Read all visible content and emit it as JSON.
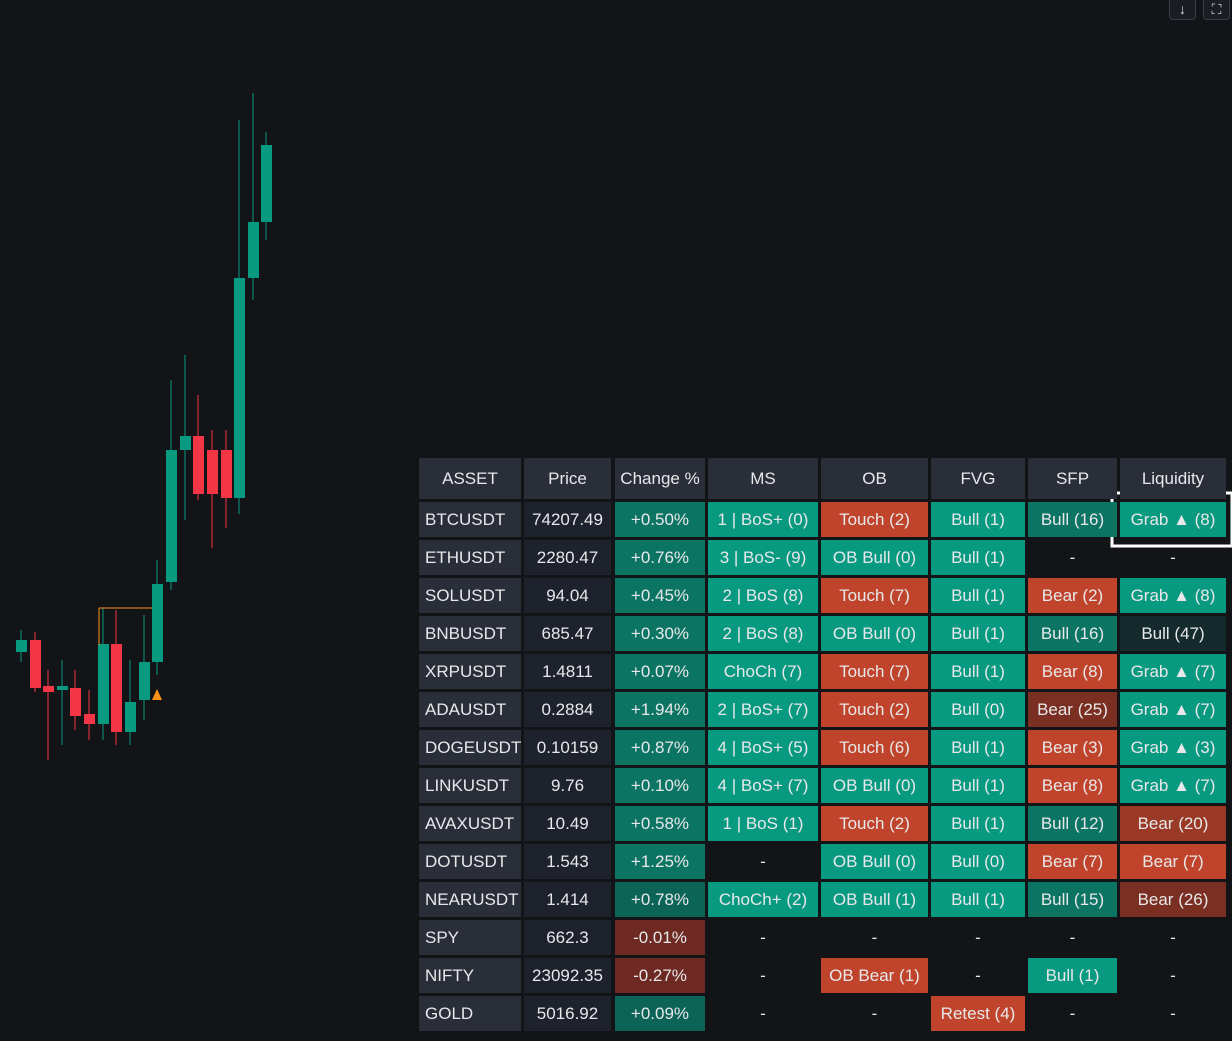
{
  "table": {
    "headers": [
      "ASSET",
      "Price",
      "Change %",
      "MS",
      "OB",
      "FVG",
      "SFP",
      "Liquidity"
    ],
    "rows": [
      [
        "BTCUSDT",
        "74207.49",
        "+0.50%",
        "1 | BoS+ (0)",
        "Touch (2)",
        "Bull (1)",
        "Bull (16)",
        "Grab ▲ (8)"
      ],
      [
        "ETHUSDT",
        "2280.47",
        "+0.76%",
        "3 | BoS- (9)",
        "OB Bull (0)",
        "Bull (1)",
        "-",
        "-"
      ],
      [
        "SOLUSDT",
        "94.04",
        "+0.45%",
        "2 | BoS (8)",
        "Touch (7)",
        "Bull (1)",
        "Bear (2)",
        "Grab ▲ (8)"
      ],
      [
        "BNBUSDT",
        "685.47",
        "+0.30%",
        "2 | BoS (8)",
        "OB Bull (0)",
        "Bull (1)",
        "Bull (16)",
        "Bull (47)"
      ],
      [
        "XRPUSDT",
        "1.4811",
        "+0.07%",
        "ChoCh (7)",
        "Touch (7)",
        "Bull (1)",
        "Bear (8)",
        "Grab ▲ (7)"
      ],
      [
        "ADAUSDT",
        "0.2884",
        "+1.94%",
        "2 | BoS+ (7)",
        "Touch (2)",
        "Bull (0)",
        "Bear (25)",
        "Grab ▲ (7)"
      ],
      [
        "DOGEUSDT",
        "0.10159",
        "+0.87%",
        "4 | BoS+ (5)",
        "Touch (6)",
        "Bull (1)",
        "Bear (3)",
        "Grab ▲ (3)"
      ],
      [
        "LINKUSDT",
        "9.76",
        "+0.10%",
        "4 | BoS+ (7)",
        "OB Bull (0)",
        "Bull (1)",
        "Bear (8)",
        "Grab ▲ (7)"
      ],
      [
        "AVAXUSDT",
        "10.49",
        "+0.58%",
        "1 | BoS (1)",
        "Touch (2)",
        "Bull (1)",
        "Bull (12)",
        "Bear (20)"
      ],
      [
        "DOTUSDT",
        "1.543",
        "+1.25%",
        "-",
        "OB Bull (0)",
        "Bull (0)",
        "Bear (7)",
        "Bear (7)"
      ],
      [
        "NEARUSDT",
        "1.414",
        "+0.78%",
        "ChoCh+ (2)",
        "OB Bull (1)",
        "Bull (1)",
        "Bull (15)",
        "Bear (26)"
      ],
      [
        "SPY",
        "662.3",
        "-0.01%",
        "-",
        "-",
        "-",
        "-",
        "-"
      ],
      [
        "NIFTY",
        "23092.35",
        "-0.27%",
        "-",
        "OB Bear (1)",
        "-",
        "Bull (1)",
        "-"
      ],
      [
        "GOLD",
        "5016.92",
        "+0.09%",
        "-",
        "-",
        "Retest (4)",
        "-",
        "-"
      ]
    ],
    "cell_colors": [
      [
        "#2a2e39",
        "#1e222d",
        "#0c7462",
        "#089981",
        "#c0442c",
        "#089981",
        "#0c7462",
        "#089981"
      ],
      [
        "#2a2e39",
        "#1e222d",
        "#0c7462",
        "#089981",
        "#089981",
        "#089981",
        null,
        null
      ],
      [
        "#2a2e39",
        "#1e222d",
        "#0c7462",
        "#089981",
        "#c0442c",
        "#089981",
        "#c0442c",
        "#089981"
      ],
      [
        "#2a2e39",
        "#1e222d",
        "#0c7462",
        "#089981",
        "#089981",
        "#089981",
        "#0c7462",
        "#152a2c"
      ],
      [
        "#2a2e39",
        "#1e222d",
        "#0c7462",
        "#089981",
        "#c0442c",
        "#089981",
        "#c0442c",
        "#089981"
      ],
      [
        "#2a2e39",
        "#1e222d",
        "#0c7462",
        "#089981",
        "#c0442c",
        "#089981",
        "#7a2f22",
        "#089981"
      ],
      [
        "#2a2e39",
        "#1e222d",
        "#0c7462",
        "#089981",
        "#c0442c",
        "#089981",
        "#c0442c",
        "#089981"
      ],
      [
        "#2a2e39",
        "#1e222d",
        "#0c7462",
        "#089981",
        "#089981",
        "#089981",
        "#c0442c",
        "#089981"
      ],
      [
        "#2a2e39",
        "#1e222d",
        "#0c7462",
        "#089981",
        "#c0442c",
        "#089981",
        "#0c7462",
        "#9a3a26"
      ],
      [
        "#2a2e39",
        "#1e222d",
        "#0c7462",
        null,
        "#089981",
        "#089981",
        "#c0442c",
        "#c0442c"
      ],
      [
        "#2a2e39",
        "#1e222d",
        "#0c6456",
        "#089981",
        "#089981",
        "#089981",
        "#0c7462",
        "#7a2f22"
      ],
      [
        "#2a2e39",
        "#1e222d",
        "#6e2a22",
        null,
        null,
        null,
        null,
        null
      ],
      [
        "#2a2e39",
        "#1e222d",
        "#6e2a22",
        null,
        "#c0442c",
        null,
        "#089981",
        null
      ],
      [
        "#2a2e39",
        "#1e222d",
        "#0c6456",
        null,
        null,
        "#c0442c",
        null,
        null
      ]
    ]
  }
}
